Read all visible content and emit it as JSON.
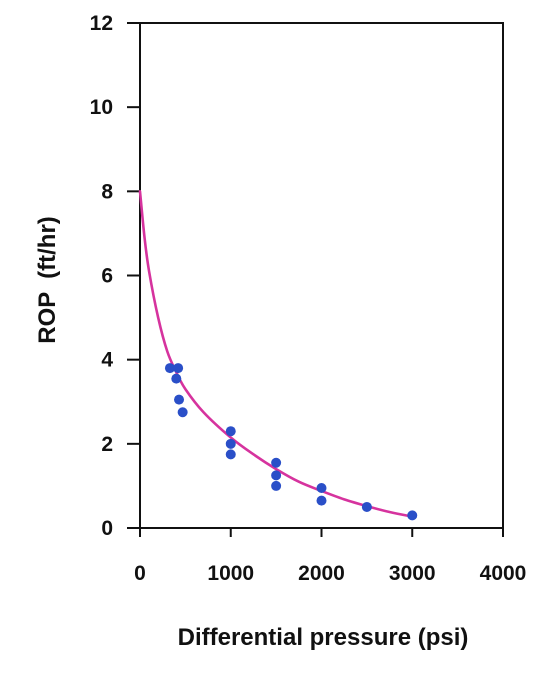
{
  "chart_data": {
    "type": "scatter",
    "title": "",
    "xlabel": "Differential pressure (psi)",
    "ylabel": "ROP  (ft/hr)",
    "xlim": [
      0,
      4000
    ],
    "ylim": [
      0,
      12
    ],
    "x_ticks": [
      "0",
      "1000",
      "2000",
      "3000",
      "4000"
    ],
    "y_ticks": [
      "0",
      "2",
      "4",
      "6",
      "8",
      "10",
      "12"
    ],
    "grid": false,
    "legend": "none",
    "series": [
      {
        "kind": "scatter",
        "color": "#2a4fc8",
        "points": [
          {
            "x": 330,
            "y": 3.8
          },
          {
            "x": 420,
            "y": 3.8
          },
          {
            "x": 400,
            "y": 3.55
          },
          {
            "x": 430,
            "y": 3.05
          },
          {
            "x": 470,
            "y": 2.75
          },
          {
            "x": 1000,
            "y": 2.3
          },
          {
            "x": 1000,
            "y": 2.0
          },
          {
            "x": 1000,
            "y": 1.75
          },
          {
            "x": 1500,
            "y": 1.55
          },
          {
            "x": 1500,
            "y": 1.25
          },
          {
            "x": 1500,
            "y": 1.0
          },
          {
            "x": 2000,
            "y": 0.95
          },
          {
            "x": 2000,
            "y": 0.65
          },
          {
            "x": 2500,
            "y": 0.5
          },
          {
            "x": 3000,
            "y": 0.3
          }
        ]
      },
      {
        "kind": "fit-curve",
        "color": "#d6339e",
        "points": [
          {
            "x": 0,
            "y": 8.0
          },
          {
            "x": 50,
            "y": 6.9
          },
          {
            "x": 100,
            "y": 6.1
          },
          {
            "x": 200,
            "y": 5.0
          },
          {
            "x": 300,
            "y": 4.2
          },
          {
            "x": 400,
            "y": 3.7
          },
          {
            "x": 500,
            "y": 3.3
          },
          {
            "x": 700,
            "y": 2.75
          },
          {
            "x": 1000,
            "y": 2.15
          },
          {
            "x": 1250,
            "y": 1.75
          },
          {
            "x": 1500,
            "y": 1.4
          },
          {
            "x": 1750,
            "y": 1.1
          },
          {
            "x": 2000,
            "y": 0.88
          },
          {
            "x": 2250,
            "y": 0.68
          },
          {
            "x": 2500,
            "y": 0.52
          },
          {
            "x": 2750,
            "y": 0.38
          },
          {
            "x": 3000,
            "y": 0.27
          }
        ]
      }
    ]
  }
}
